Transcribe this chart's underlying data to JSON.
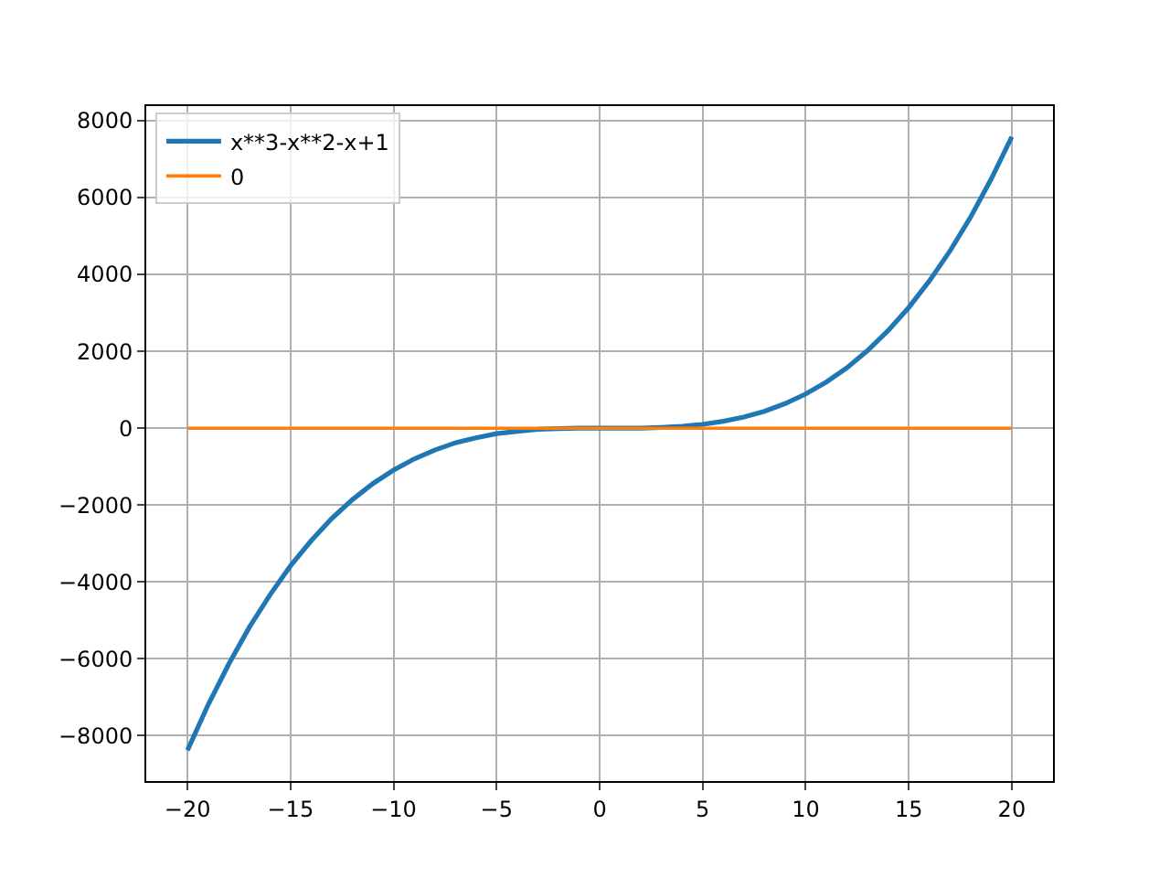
{
  "chart_data": {
    "type": "line",
    "series": [
      {
        "name": "x**3-x**2-x+1",
        "color": "#1f77b4",
        "x": [
          -20,
          -19,
          -18,
          -17,
          -16,
          -15,
          -14,
          -13,
          -12,
          -11,
          -10,
          -9,
          -8,
          -7,
          -6,
          -5,
          -4,
          -3,
          -2,
          -1,
          0,
          1,
          2,
          3,
          4,
          5,
          6,
          7,
          8,
          9,
          10,
          11,
          12,
          13,
          14,
          15,
          16,
          17,
          18,
          19,
          20
        ],
        "values": [
          -8380,
          -7200,
          -6140,
          -5180,
          -4340,
          -3580,
          -2930,
          -2350,
          -1860,
          -1440,
          -1090,
          -800,
          -570,
          -380,
          -250,
          -140,
          -80,
          -30,
          -10,
          0,
          0,
          0,
          0,
          20,
          50,
          100,
          180,
          290,
          440,
          640,
          890,
          1200,
          1570,
          2020,
          2540,
          3140,
          3830,
          4610,
          5490,
          6480,
          7580
        ]
      },
      {
        "name": "0",
        "color": "#ff7f0e",
        "x": [
          -20,
          20
        ],
        "values": [
          0,
          0
        ]
      }
    ],
    "xlim": [
      -22,
      22
    ],
    "xticks": [
      {
        "value": -20,
        "label": "−20"
      },
      {
        "value": -15,
        "label": "−15"
      },
      {
        "value": -10,
        "label": "−10"
      },
      {
        "value": -5,
        "label": "−5"
      },
      0,
      5,
      10,
      15,
      20
    ],
    "ylim": [
      -9180,
      8380
    ],
    "yticks": [
      {
        "value": -8000,
        "label": "−8000"
      },
      {
        "value": -6000,
        "label": "−6000"
      },
      {
        "value": -4000,
        "label": "−4000"
      },
      {
        "value": -2000,
        "label": "−2000"
      },
      0,
      2000,
      4000,
      6000,
      8000
    ],
    "grid": true,
    "legend": "top left",
    "marker": "none",
    "line_style": "solid"
  }
}
